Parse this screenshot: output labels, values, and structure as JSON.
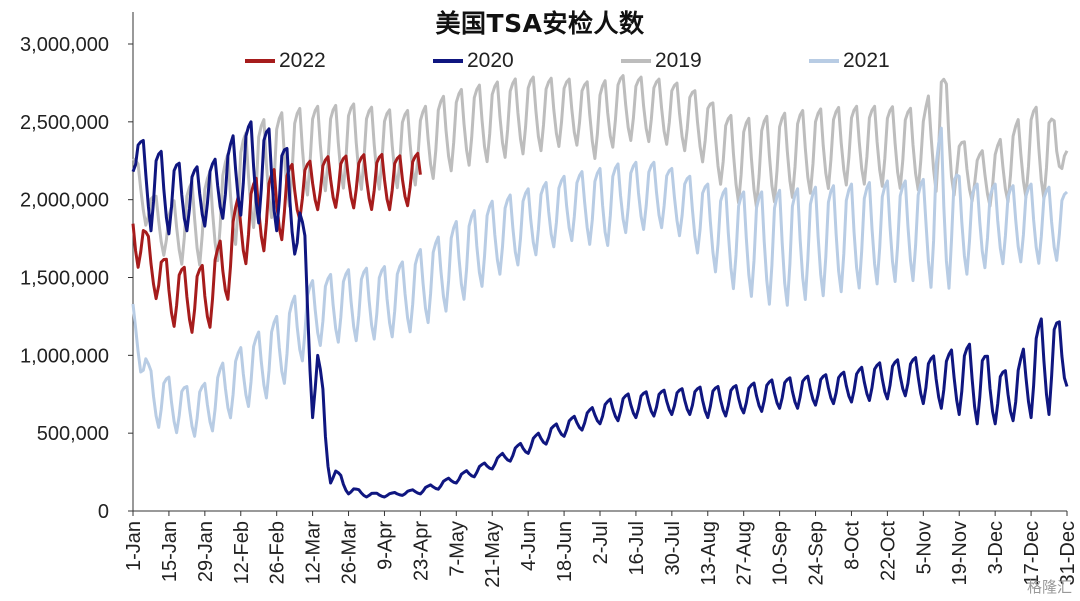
{
  "chart_data": {
    "type": "line",
    "title": "美国TSA安检人数",
    "xlabel": "",
    "ylabel": "",
    "ylim": [
      0,
      3000000
    ],
    "y_ticks": [
      "0",
      "500,000",
      "1,000,000",
      "1,500,000",
      "2,000,000",
      "2,500,000",
      "3,000,000"
    ],
    "y_tick_values": [
      0,
      500000,
      1000000,
      1500000,
      2000000,
      2500000,
      3000000
    ],
    "x_ticks": [
      "1-Jan",
      "15-Jan",
      "29-Jan",
      "12-Feb",
      "26-Feb",
      "12-Mar",
      "26-Mar",
      "9-Apr",
      "23-Apr",
      "7-May",
      "21-May",
      "4-Jun",
      "18-Jun",
      "2-Jul",
      "16-Jul",
      "30-Jul",
      "13-Aug",
      "27-Aug",
      "10-Sep",
      "24-Sep",
      "8-Oct",
      "22-Oct",
      "5-Nov",
      "19-Nov",
      "3-Dec",
      "17-Dec",
      "31-Dec"
    ],
    "x_unit": "day-of-year (1 = 1-Jan, 365 = 31-Dec)",
    "legend_position": "top",
    "grid": false,
    "series": [
      {
        "name": "2022",
        "color": "#A61C1C",
        "x": [
          1,
          8,
          15,
          22,
          29,
          36,
          43,
          50,
          57,
          64,
          71,
          78,
          85,
          92,
          99,
          106,
          113
        ],
        "weekly_low": [
          1620000,
          1430000,
          1200000,
          1150000,
          1140000,
          1280000,
          1560000,
          1660000,
          1700000,
          1850000,
          1930000,
          1950000,
          1950000,
          1940000,
          1930000,
          1950000,
          1990000
        ],
        "weekly_high": [
          2030000,
          1720000,
          1600000,
          1560000,
          1580000,
          1760000,
          2060000,
          2150000,
          2200000,
          2230000,
          2250000,
          2280000,
          2280000,
          2290000,
          2290000,
          2280000,
          2300000
        ]
      },
      {
        "name": "2020",
        "color": "#0F1680",
        "x": [
          1,
          8,
          15,
          22,
          29,
          36,
          43,
          50,
          57,
          64,
          71,
          78,
          85,
          92,
          99,
          106,
          113,
          120,
          127,
          134,
          141,
          148,
          155,
          162,
          169,
          176,
          183,
          190,
          197,
          204,
          211,
          218,
          225,
          232,
          239,
          246,
          253,
          260,
          267,
          274,
          281,
          288,
          295,
          302,
          309,
          316,
          323,
          330,
          337,
          344,
          351,
          358,
          365
        ],
        "weekly_low": [
          2180000,
          1800000,
          1780000,
          1800000,
          1830000,
          1880000,
          1900000,
          1850000,
          1800000,
          1650000,
          600000,
          180000,
          110000,
          90000,
          90000,
          100000,
          110000,
          140000,
          180000,
          220000,
          270000,
          320000,
          370000,
          430000,
          480000,
          520000,
          560000,
          580000,
          600000,
          610000,
          620000,
          620000,
          600000,
          610000,
          630000,
          640000,
          660000,
          660000,
          680000,
          690000,
          700000,
          710000,
          720000,
          740000,
          690000,
          660000,
          620000,
          560000,
          560000,
          580000,
          600000,
          620000,
          800000
        ],
        "weekly_high": [
          2420000,
          2350000,
          2280000,
          2200000,
          2220000,
          2290000,
          2500000,
          2500000,
          2420000,
          2260000,
          1400000,
          320000,
          160000,
          120000,
          110000,
          125000,
          145000,
          185000,
          230000,
          280000,
          330000,
          400000,
          460000,
          530000,
          580000,
          630000,
          690000,
          740000,
          760000,
          770000,
          780000,
          790000,
          800000,
          800000,
          810000,
          830000,
          850000,
          860000,
          870000,
          880000,
          900000,
          940000,
          960000,
          980000,
          990000,
          1000000,
          1060000,
          1080000,
          930000,
          880000,
          1160000,
          1290000,
          1160000
        ]
      },
      {
        "name": "2019",
        "color": "#BDBDBD",
        "x": [
          1,
          8,
          15,
          22,
          29,
          36,
          43,
          50,
          57,
          64,
          71,
          78,
          85,
          92,
          99,
          106,
          113,
          120,
          127,
          134,
          141,
          148,
          155,
          162,
          169,
          176,
          183,
          190,
          197,
          204,
          211,
          218,
          225,
          232,
          239,
          246,
          253,
          260,
          267,
          274,
          281,
          288,
          295,
          302,
          309,
          316,
          323,
          330,
          337,
          344,
          351,
          358,
          365
        ],
        "weekly_low": [
          2050000,
          1750000,
          1600000,
          1580000,
          1580000,
          1620000,
          1750000,
          1850000,
          1900000,
          1980000,
          2050000,
          2060000,
          2080000,
          2060000,
          2070000,
          2080000,
          2100000,
          2150000,
          2200000,
          2230000,
          2250000,
          2280000,
          2300000,
          2320000,
          2350000,
          2350000,
          2230000,
          2380000,
          2380000,
          2370000,
          2350000,
          2300000,
          2220000,
          2050000,
          1950000,
          1950000,
          2000000,
          2020000,
          2050000,
          2080000,
          2100000,
          2100000,
          2080000,
          2070000,
          2060000,
          2050000,
          2020000,
          1980000,
          1950000,
          2000000,
          2020000,
          2000000,
          2280000
        ],
        "weekly_high": [
          2300000,
          2050000,
          1950000,
          2100000,
          2150000,
          2250000,
          2400000,
          2500000,
          2550000,
          2580000,
          2600000,
          2600000,
          2620000,
          2600000,
          2580000,
          2570000,
          2580000,
          2650000,
          2700000,
          2730000,
          2750000,
          2770000,
          2790000,
          2780000,
          2780000,
          2760000,
          2750000,
          2800000,
          2790000,
          2780000,
          2760000,
          2720000,
          2650000,
          2550000,
          2520000,
          2530000,
          2550000,
          2570000,
          2580000,
          2590000,
          2600000,
          2600000,
          2600000,
          2590000,
          2580000,
          2880000,
          2400000,
          2300000,
          2350000,
          2480000,
          2600000,
          2580000,
          2320000
        ]
      },
      {
        "name": "2021",
        "color": "#B8CCE4",
        "x": [
          1,
          8,
          15,
          22,
          29,
          36,
          43,
          50,
          57,
          64,
          71,
          78,
          85,
          92,
          99,
          106,
          113,
          120,
          127,
          134,
          141,
          148,
          155,
          162,
          169,
          176,
          183,
          190,
          197,
          204,
          211,
          218,
          225,
          232,
          239,
          246,
          253,
          260,
          267,
          274,
          281,
          288,
          295,
          302,
          309,
          316,
          323,
          330,
          337,
          344,
          351,
          358,
          365
        ],
        "weekly_low": [
          1150000,
          550000,
          520000,
          480000,
          480000,
          560000,
          650000,
          700000,
          760000,
          900000,
          1050000,
          1080000,
          1090000,
          1100000,
          1110000,
          1130000,
          1180000,
          1250000,
          1330000,
          1400000,
          1500000,
          1550000,
          1620000,
          1680000,
          1720000,
          1760000,
          1650000,
          1780000,
          1800000,
          1820000,
          1820000,
          1700000,
          1600000,
          1450000,
          1400000,
          1350000,
          1300000,
          1350000,
          1370000,
          1400000,
          1420000,
          1450000,
          1470000,
          1480000,
          1480000,
          1380000,
          1500000,
          1550000,
          1580000,
          1600000,
          1600000,
          1580000,
          1650000
        ],
        "weekly_high": [
          1330000,
          900000,
          860000,
          800000,
          820000,
          950000,
          1050000,
          1150000,
          1250000,
          1380000,
          1480000,
          1520000,
          1550000,
          1560000,
          1570000,
          1600000,
          1680000,
          1760000,
          1860000,
          1930000,
          1990000,
          2030000,
          2070000,
          2110000,
          2150000,
          2180000,
          2200000,
          2230000,
          2240000,
          2240000,
          2200000,
          2150000,
          2100000,
          2070000,
          2050000,
          2050000,
          2060000,
          2070000,
          2080000,
          2090000,
          2100000,
          2110000,
          2120000,
          2120000,
          2130000,
          2460000,
          2150000,
          2100000,
          2100000,
          2090000,
          2100000,
          2080000,
          2050000
        ]
      }
    ],
    "watermark": "格隆汇"
  }
}
